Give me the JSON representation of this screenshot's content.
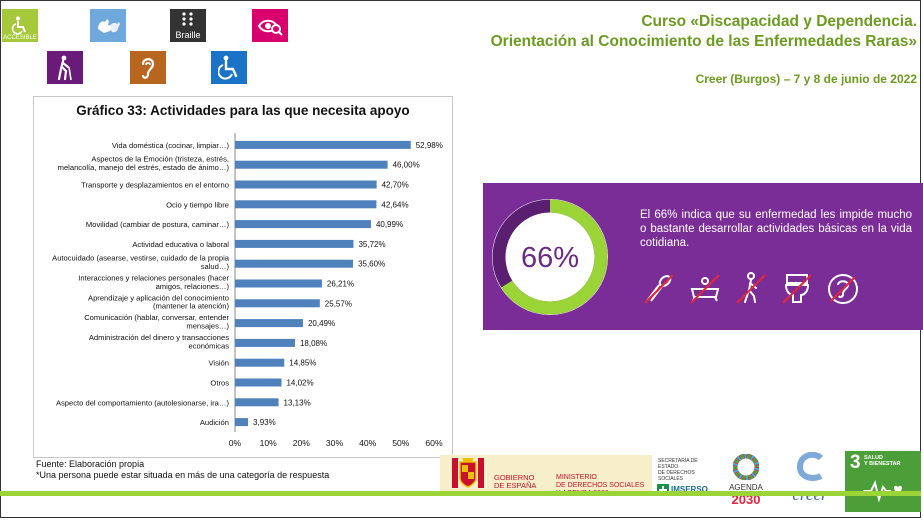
{
  "accessibility": {
    "accessible_label": "ACCESIBLE",
    "braille_label": "Braille"
  },
  "header": {
    "title_line1": "Curso «Discapacidad y Dependencia.",
    "title_line2": "Orientación al Conocimiento de las Enfermedades Raras»",
    "subtitle": "Creer (Burgos) – 7 y 8 de junio de 2022"
  },
  "chart_data": {
    "type": "bar",
    "orientation": "horizontal",
    "title": "Gráfico 33: Actividades para las que necesita apoyo",
    "categories": [
      [
        "Vida doméstica (cocinar, limpiar…)"
      ],
      [
        "Aspectos de la Emoción (tristeza, estrés,",
        "melancolía, manejo del estrés, estado de ánimo…)"
      ],
      [
        "Transporte y desplazamientos en el entorno"
      ],
      [
        "Ocio y tiempo libre"
      ],
      [
        "Movilidad (cambiar de postura, caminar…)"
      ],
      [
        "Actividad educativa o laboral"
      ],
      [
        "Autocuidado (asearse, vestirse, cuidado de la propia",
        "salud…)"
      ],
      [
        "Interacciones y relaciones personales (hacer",
        "amigos, relaciones…)"
      ],
      [
        "Aprendizaje y aplicación del conocimiento",
        "(mantener la atención)"
      ],
      [
        "Comunicación (hablar, conversar, entender",
        "mensajes…)"
      ],
      [
        "Administración del dinero y transacciones",
        "económicas"
      ],
      [
        "Visión"
      ],
      [
        "Otros"
      ],
      [
        "Aspecto del comportamiento (autolesionarse, ira…)"
      ],
      [
        "Audición"
      ]
    ],
    "values": [
      52.98,
      46.0,
      42.7,
      42.64,
      40.99,
      35.72,
      35.6,
      26.21,
      25.57,
      20.49,
      18.08,
      14.85,
      14.02,
      13.13,
      3.93
    ],
    "value_labels": [
      "52,98%",
      "46,00%",
      "42,70%",
      "42,64%",
      "40,99%",
      "35,72%",
      "35,60%",
      "26,21%",
      "25,57%",
      "20,49%",
      "18,08%",
      "14,85%",
      "14,02%",
      "13,13%",
      "3,93%"
    ],
    "xlim": [
      0,
      60
    ],
    "xticks": [
      "0%",
      "10%",
      "20%",
      "30%",
      "40%",
      "50%",
      "60%"
    ],
    "grid": false,
    "bar_color": "#4f81bd"
  },
  "notes": {
    "source": "Fuente: Elaboración propia",
    "footnote": "*Una persona puede estar situada en más de una categoría de respuesta"
  },
  "banner": {
    "percent": "66%",
    "ring_value": 0.66,
    "text": "El 66% indica que su enfermedad les impide mucho o bastante desarrollar actividades básicas en la vida cotidiana.",
    "icons": [
      "cooking-icon",
      "bath-icon",
      "walking-icon",
      "toilet-icon",
      "hearing-icon"
    ]
  },
  "footer": {
    "gobierno_line1": "GOBIERNO",
    "gobierno_line2": "DE ESPAÑA",
    "ministerio_line1": "MINISTERIO",
    "ministerio_line2": "DE DERECHOS SOCIALES",
    "ministerio_line3": "Y AGENDA 2030",
    "secretaria_line1": "SECRETARÍA DE ESTADO",
    "secretaria_line2": "DE DERECHOS SOCIALES",
    "imserso": "IMSERSO",
    "agenda_line1": "AGENDA",
    "agenda_line2": "2030",
    "creer": "creer",
    "ods_number": "3",
    "ods_line1": "SALUD",
    "ods_line2": "Y BIENESTAR"
  }
}
